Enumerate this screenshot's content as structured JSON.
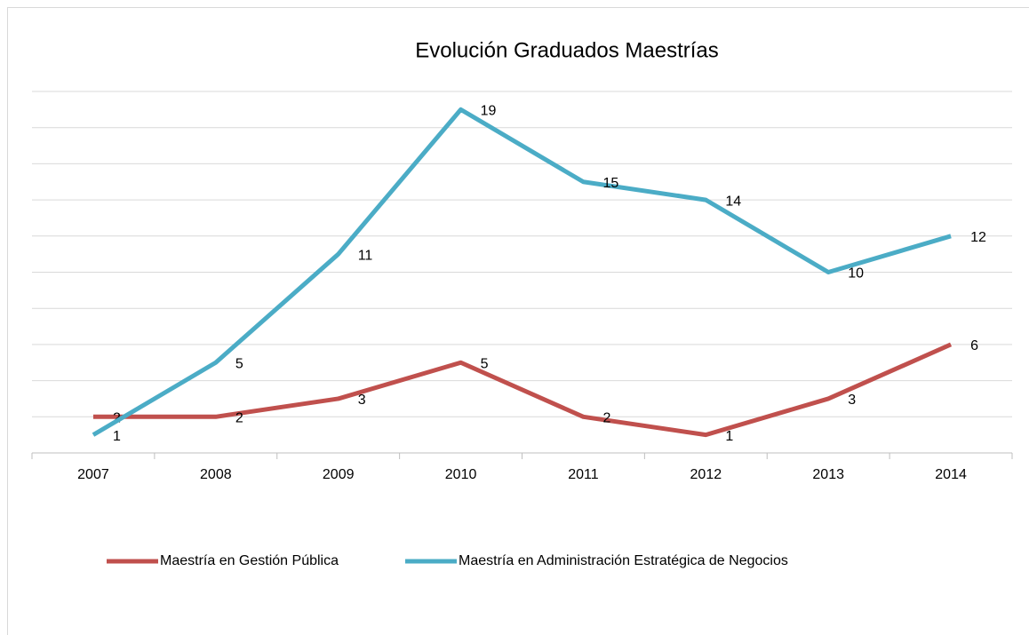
{
  "chart_data": {
    "type": "line",
    "title": "Evolución Graduados Maestrías",
    "categories": [
      "2007",
      "2008",
      "2009",
      "2010",
      "2011",
      "2012",
      "2013",
      "2014"
    ],
    "series": [
      {
        "name": "Maestría en Gestión Pública",
        "color": "#c0504d",
        "values": [
          2,
          2,
          3,
          5,
          2,
          1,
          3,
          6
        ]
      },
      {
        "name": "Maestría en Administración Estratégica de Negocios",
        "color": "#4bacc6",
        "values": [
          1,
          5,
          11,
          19,
          15,
          14,
          10,
          12
        ]
      }
    ],
    "ylim": [
      0,
      20
    ],
    "yticks": [
      0,
      2,
      4,
      6,
      8,
      10,
      12,
      14,
      16,
      18,
      20
    ],
    "grid": true,
    "legend": "bottom"
  }
}
